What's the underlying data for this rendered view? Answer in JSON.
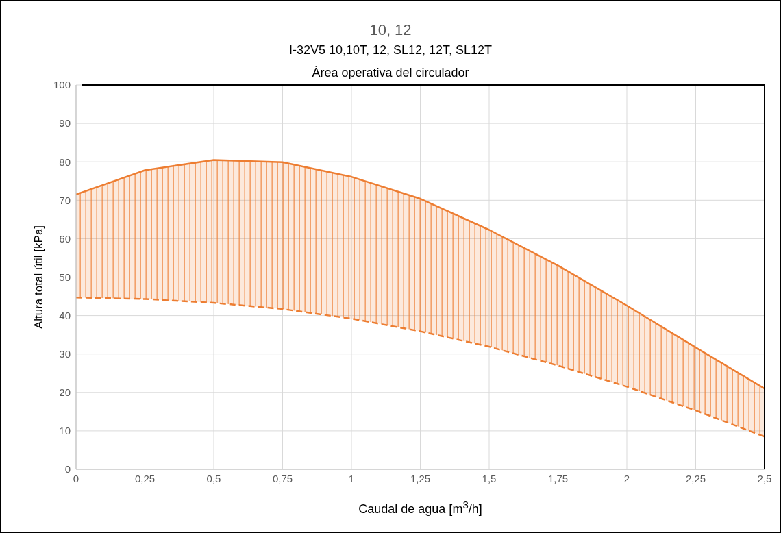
{
  "chart_data": {
    "type": "line",
    "title": "10, 12",
    "subtitle": "I-32V5 10,10T, 12, SL12, 12T, SL12T\nÁrea operativa del circulador",
    "xlabel": "Caudal de agua [m$^{3}$/h]",
    "ylabel": "Altura total útil [kPa]",
    "x": [
      0,
      0.25,
      0.5,
      0.75,
      1,
      1.25,
      1.5,
      1.75,
      2,
      2.25,
      2.5
    ],
    "series": [
      {
        "type": "line",
        "color": "#ed7d31",
        "line_style": "solid",
        "values": [
          71.5,
          77.8,
          80.5,
          79.9,
          76.1,
          70.4,
          62.3,
          53,
          42.6,
          31.7,
          21
        ],
        "lower": [
          44.7,
          44.3,
          43.3,
          41.7,
          39.2,
          35.9,
          31.9,
          27,
          21.5,
          15.3,
          8.5
        ],
        "upper": [
          71.5,
          77.8,
          80.5,
          79.9,
          76.1,
          70.4,
          62.3,
          53,
          42.6,
          31.7,
          21
        ]
      },
      {
        "type": "line",
        "color": "#ed7d31",
        "line_style": "dashed",
        "values": [
          44.7,
          44.3,
          43.3,
          41.7,
          39.2,
          35.9,
          31.9,
          27,
          21.5,
          15.3,
          8.5
        ]
      }
    ],
    "xlim": [
      0,
      2.5
    ],
    "xticks": [
      {
        "value": 0,
        "label": "0"
      },
      {
        "value": 0.25,
        "label": "0,25"
      },
      {
        "value": 0.5,
        "label": "0,5"
      },
      {
        "value": 0.75,
        "label": "0,75"
      },
      {
        "value": 1,
        "label": "1"
      },
      {
        "value": 1.25,
        "label": "1,25"
      },
      {
        "value": 1.5,
        "label": "1,5"
      },
      {
        "value": 1.75,
        "label": "1,75"
      },
      {
        "value": 2,
        "label": "2"
      },
      {
        "value": 2.25,
        "label": "2,25"
      },
      {
        "value": 2.5,
        "label": "2,5"
      }
    ],
    "ylim": [
      0,
      100
    ],
    "yticks": [
      0,
      10,
      20,
      30,
      40,
      50,
      60,
      70,
      80,
      90,
      100
    ],
    "grid": true,
    "marker": "none"
  }
}
